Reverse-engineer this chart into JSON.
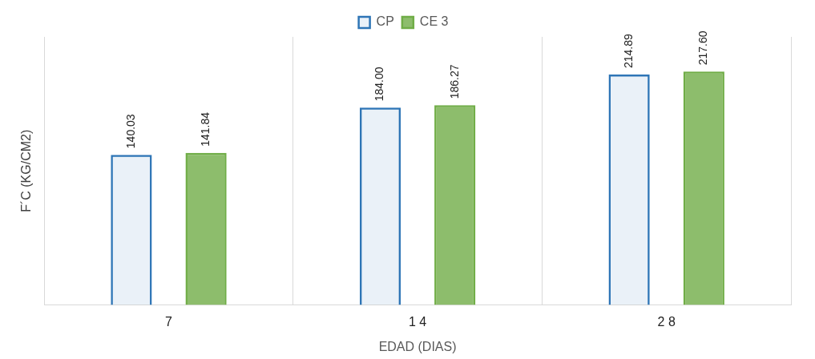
{
  "chart_data": {
    "type": "bar",
    "xlabel": "EDAD (DIAS)",
    "ylabel": "F´C (KG/CM2)",
    "categories": [
      "7",
      "1 4",
      "2 8"
    ],
    "series": [
      {
        "name": "CP",
        "color": "#2e75b6",
        "values": [
          140.03,
          184.0,
          214.89
        ],
        "value_labels": [
          "140.03",
          "184.00",
          "214.89"
        ]
      },
      {
        "name": "CE 3",
        "color": "#70ad47",
        "values": [
          141.84,
          186.27,
          217.6
        ],
        "value_labels": [
          "141.84",
          "186.27",
          "217.60"
        ]
      }
    ],
    "grid": "x",
    "legend": "top"
  }
}
